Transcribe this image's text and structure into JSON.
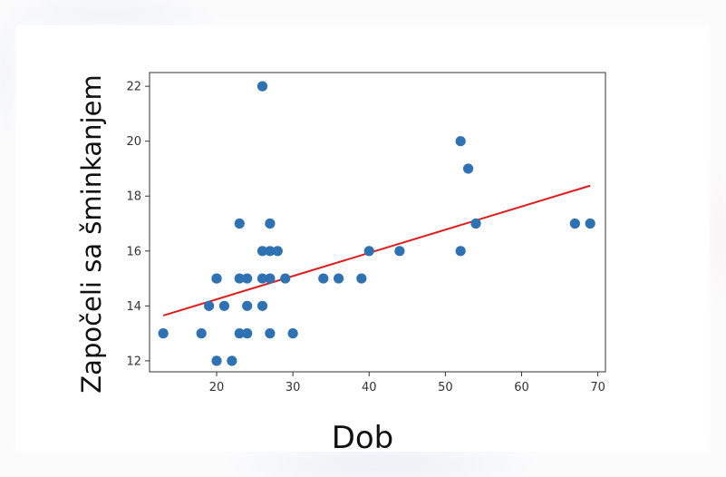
{
  "chart_data": {
    "type": "scatter",
    "title": "",
    "xlabel": "Dob",
    "ylabel": "Započeli sa šminkanjem",
    "xlim": [
      11.2,
      71.0
    ],
    "ylim": [
      11.6,
      22.5
    ],
    "xticks": [
      20,
      30,
      40,
      50,
      60,
      70
    ],
    "yticks": [
      12,
      14,
      16,
      18,
      20,
      22
    ],
    "grid": false,
    "legend": "none",
    "points": [
      [
        13,
        13
      ],
      [
        18,
        13
      ],
      [
        19,
        14
      ],
      [
        20,
        15
      ],
      [
        20,
        15
      ],
      [
        20,
        12
      ],
      [
        21,
        14
      ],
      [
        22,
        12
      ],
      [
        23,
        17
      ],
      [
        23,
        15
      ],
      [
        23,
        13
      ],
      [
        24,
        15
      ],
      [
        24,
        14
      ],
      [
        24,
        13
      ],
      [
        26,
        22
      ],
      [
        26,
        16
      ],
      [
        26,
        15
      ],
      [
        26,
        14
      ],
      [
        27,
        17
      ],
      [
        27,
        16
      ],
      [
        27,
        15
      ],
      [
        27,
        13
      ],
      [
        28,
        16
      ],
      [
        29,
        15
      ],
      [
        30,
        13
      ],
      [
        34,
        15
      ],
      [
        36,
        15
      ],
      [
        39,
        15
      ],
      [
        40,
        16
      ],
      [
        44,
        16
      ],
      [
        52,
        20
      ],
      [
        52,
        16
      ],
      [
        53,
        19
      ],
      [
        54,
        17
      ],
      [
        67,
        17
      ],
      [
        69,
        17
      ]
    ],
    "trendline": {
      "x": [
        13,
        69
      ],
      "y": [
        13.65,
        18.38
      ]
    },
    "colors": {
      "points": "#2f72b4",
      "trendline": "#e01b1b",
      "axes": "#333333"
    }
  }
}
